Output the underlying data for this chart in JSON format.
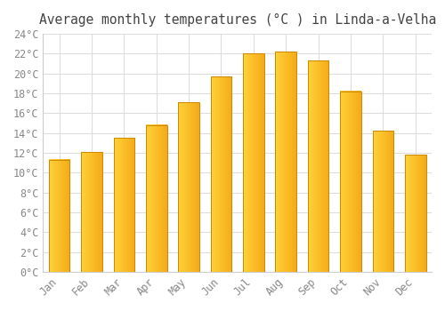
{
  "title": "Average monthly temperatures (°C ) in Linda-a-Velha",
  "months": [
    "Jan",
    "Feb",
    "Mar",
    "Apr",
    "May",
    "Jun",
    "Jul",
    "Aug",
    "Sep",
    "Oct",
    "Nov",
    "Dec"
  ],
  "temperatures": [
    11.3,
    12.1,
    13.5,
    14.8,
    17.1,
    19.7,
    22.0,
    22.2,
    21.3,
    18.2,
    14.2,
    11.8
  ],
  "bar_color_left": "#FFCC33",
  "bar_color_right": "#F5A800",
  "bar_edge_color": "#CC8800",
  "background_color": "#ffffff",
  "plot_bg_color": "#ffffff",
  "grid_color": "#dddddd",
  "ylim": [
    0,
    24
  ],
  "ytick_step": 2,
  "title_fontsize": 10.5,
  "tick_fontsize": 8.5,
  "tick_color": "#888888",
  "title_color": "#444444"
}
